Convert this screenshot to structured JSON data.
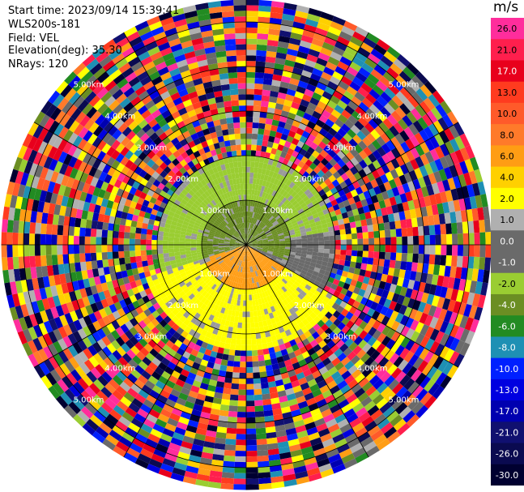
{
  "header": {
    "start_time": "Start time: 2023/09/14 15:39:41",
    "instrument": "WLS200s-181",
    "field": "Field: VEL",
    "elevation": "Elevation(deg): 35.30",
    "nrays": "NRays: 120"
  },
  "colorbar": {
    "unit": "m/s",
    "ticks": [
      "26.0",
      "21.0",
      "17.0",
      "13.0",
      "10.0",
      "8.0",
      "6.0",
      "4.0",
      "2.0",
      "1.0",
      "0.0",
      "-1.0",
      "-2.0",
      "-4.0",
      "-6.0",
      "-8.0",
      "-10.0",
      "-13.0",
      "-17.0",
      "-21.0",
      "-26.0",
      "-30.0"
    ],
    "colors": [
      "#ff2d9c",
      "#ff1f4d",
      "#e8001c",
      "#ff3b1f",
      "#ff5a2a",
      "#ff7a2a",
      "#ff9d14",
      "#ffd000",
      "#ffff00",
      "#b0b0b0",
      "#6a6a6a",
      "#6a6a6a",
      "#9acd32",
      "#6b8e23",
      "#228b22",
      "#1e90b4",
      "#0020ff",
      "#0000e0",
      "#0000b0",
      "#101070",
      "#0a0a50",
      "#000030"
    ]
  },
  "chart_data": {
    "type": "ppi",
    "field": "VEL",
    "units": "m/s",
    "nrays": 120,
    "elevation_deg": 35.3,
    "range_rings_km": [
      1,
      2,
      3,
      4,
      5
    ],
    "ring_labels": [
      "1.00km",
      "2.00km",
      "3.00km",
      "4.00km",
      "5.00km"
    ],
    "max_range_km": 5.5,
    "spoke_angles_deg": [
      0,
      30,
      60,
      90,
      120,
      150,
      180,
      210,
      240,
      270,
      300,
      330
    ],
    "velocity_regions": [
      {
        "sector_deg": [
          250,
          110
        ],
        "range_km": [
          0,
          1.0
        ],
        "velocity": -4.0
      },
      {
        "sector_deg": [
          250,
          80
        ],
        "range_km": [
          1.0,
          2.0
        ],
        "velocity": -2.0
      },
      {
        "sector_deg": [
          80,
          120
        ],
        "range_km": [
          0,
          2.0
        ],
        "velocity": -1.0
      },
      {
        "sector_deg": [
          120,
          250
        ],
        "range_km": [
          0,
          1.0
        ],
        "velocity": 6.0
      },
      {
        "sector_deg": [
          120,
          250
        ],
        "range_km": [
          1.0,
          2.4
        ],
        "velocity": 2.0
      },
      {
        "sector_deg": [
          0,
          360
        ],
        "range_km": [
          2.0,
          5.5
        ],
        "velocity": "noise"
      }
    ]
  }
}
